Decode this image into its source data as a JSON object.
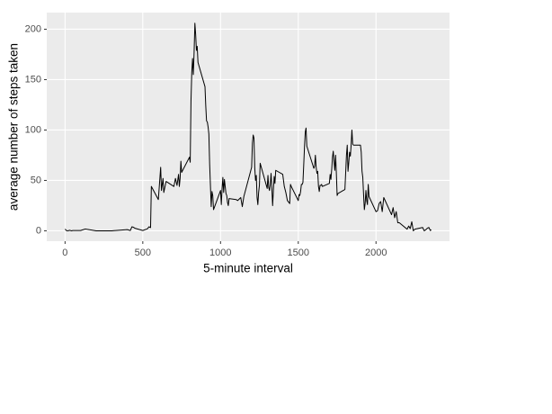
{
  "chart_data": {
    "type": "line",
    "xlabel": "5-minute interval",
    "ylabel": "average number of steps taken",
    "xlim": [
      -117.75,
      2472.75
    ],
    "ylim": [
      -10.31,
      216.48
    ],
    "xticks": [
      0,
      500,
      1000,
      1500,
      2000
    ],
    "yticks": [
      0,
      50,
      100,
      150,
      200
    ],
    "grid": true,
    "color": "#000000",
    "x": [
      0,
      10,
      20,
      30,
      40,
      50,
      100,
      130,
      200,
      300,
      400,
      420,
      430,
      440,
      450,
      500,
      530,
      540,
      550,
      555,
      600,
      615,
      620,
      630,
      635,
      650,
      700,
      710,
      720,
      730,
      735,
      740,
      745,
      750,
      800,
      805,
      810,
      815,
      820,
      825,
      830,
      835,
      840,
      845,
      850,
      855,
      900,
      905,
      910,
      915,
      920,
      925,
      930,
      935,
      940,
      945,
      950,
      955,
      1000,
      1005,
      1010,
      1015,
      1020,
      1025,
      1030,
      1035,
      1040,
      1045,
      1050,
      1055,
      1100,
      1110,
      1130,
      1140,
      1150,
      1200,
      1205,
      1210,
      1215,
      1220,
      1225,
      1230,
      1235,
      1240,
      1245,
      1250,
      1255,
      1300,
      1305,
      1310,
      1315,
      1320,
      1325,
      1330,
      1335,
      1340,
      1345,
      1350,
      1355,
      1400,
      1410,
      1420,
      1430,
      1445,
      1450,
      1455,
      1500,
      1505,
      1510,
      1515,
      1520,
      1525,
      1530,
      1535,
      1540,
      1545,
      1550,
      1555,
      1600,
      1605,
      1610,
      1615,
      1620,
      1625,
      1630,
      1635,
      1640,
      1645,
      1650,
      1655,
      1700,
      1705,
      1710,
      1715,
      1720,
      1725,
      1730,
      1735,
      1740,
      1745,
      1750,
      1755,
      1800,
      1805,
      1810,
      1815,
      1820,
      1825,
      1830,
      1835,
      1840,
      1845,
      1850,
      1855,
      1900,
      1905,
      1910,
      1915,
      1920,
      1925,
      1930,
      1935,
      1940,
      1945,
      1950,
      1955,
      2000,
      2010,
      2020,
      2030,
      2040,
      2050,
      2100,
      2110,
      2120,
      2130,
      2140,
      2150,
      2200,
      2210,
      2220,
      2230,
      2240,
      2250,
      2300,
      2310,
      2320,
      2330,
      2340,
      2350,
      2355
    ],
    "values": [
      1.7,
      0.1,
      0.1,
      0.5,
      0,
      0.3,
      0.3,
      1.8,
      0,
      0,
      1.2,
      0.3,
      4,
      3.5,
      2.5,
      0.3,
      2,
      4,
      3.2,
      44,
      31,
      63,
      40,
      52,
      38,
      49,
      44,
      52,
      45,
      56,
      44,
      52,
      69,
      58,
      73,
      68,
      129,
      157,
      171,
      155,
      177,
      206,
      195,
      179,
      183,
      167,
      143,
      124,
      109,
      108,
      103,
      96,
      66,
      45,
      24,
      39,
      35,
      21,
      40,
      26,
      42,
      53,
      38,
      51,
      44,
      37,
      35,
      28,
      25,
      32,
      31,
      30,
      33,
      24,
      34,
      63,
      87,
      95,
      92,
      63,
      50,
      55,
      33,
      26,
      38,
      45,
      67,
      42,
      55,
      43,
      40,
      46,
      57,
      43,
      25,
      40,
      54,
      47,
      60,
      56,
      44,
      38,
      30,
      27,
      46,
      44,
      30,
      36,
      35,
      39,
      46,
      46,
      48,
      65,
      83,
      98,
      102,
      84,
      62,
      64,
      75,
      63,
      57,
      59,
      44,
      39,
      45,
      45,
      46,
      44,
      47,
      56,
      51,
      61,
      73,
      79,
      69,
      60,
      75,
      57,
      35,
      37,
      41,
      58,
      75,
      85,
      59,
      68,
      78,
      74,
      85,
      100,
      86,
      85,
      85,
      78,
      59,
      53,
      36,
      21,
      27,
      40,
      30,
      26,
      46,
      34,
      19,
      20,
      27,
      29,
      19,
      33,
      16,
      23,
      13,
      19,
      8,
      8,
      1.6,
      4.7,
      2.2,
      9,
      0,
      1.6,
      3.3,
      0,
      1,
      2.6,
      3.3,
      0.2,
      1.1
    ]
  }
}
